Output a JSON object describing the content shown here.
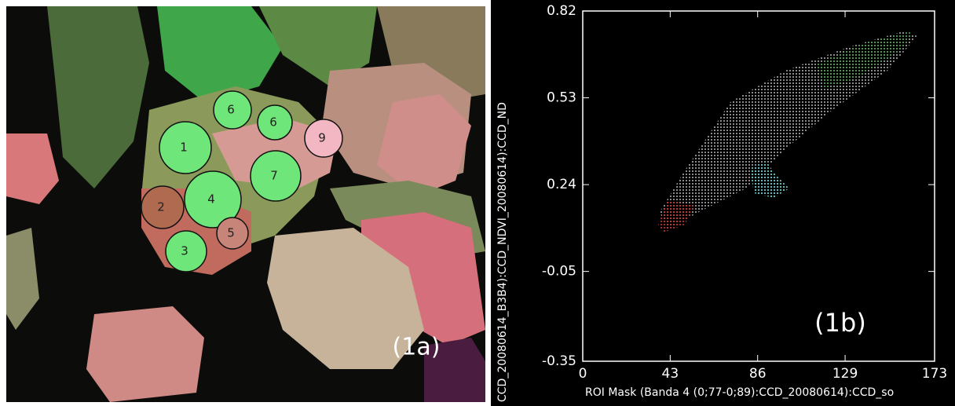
{
  "image_panel": {
    "label": "(1a)",
    "rois": [
      "1",
      "2",
      "3",
      "4",
      "5",
      "6",
      "6",
      "7",
      "9"
    ]
  },
  "chart_data": {
    "type": "scatter",
    "label": "(1b)",
    "x_label": "ROI Mask (Banda 4 (0;77-0;89):CCD_20080614):CCD_so",
    "y_label": "CCD_20080614_B3B4):CCD_NDVI_20080614):CCD_ND",
    "xlim": [
      0,
      173
    ],
    "xticks": [
      0,
      43,
      86,
      129,
      173
    ],
    "ylim": [
      -0.35,
      0.82
    ],
    "yticks": [
      -0.35,
      -0.05,
      0.24,
      0.53,
      0.82
    ]
  }
}
